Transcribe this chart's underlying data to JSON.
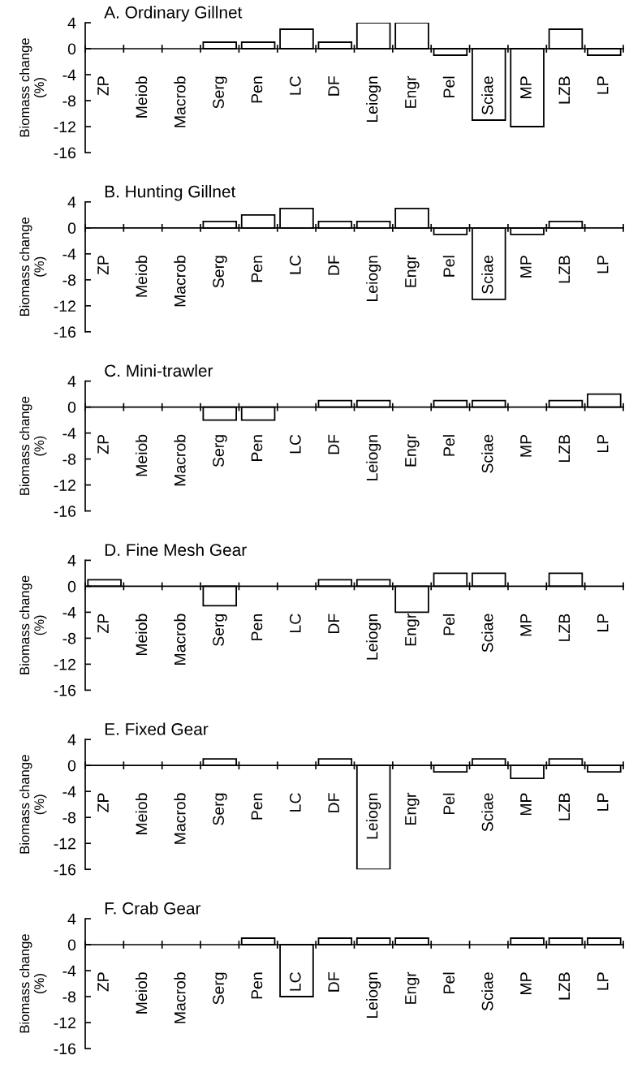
{
  "chart_data": [
    {
      "type": "bar",
      "title": "A. Ordinary Gillnet",
      "ylabel": "Biomass change\n(%)",
      "color": "#ffffff",
      "ylim": [
        -16,
        4
      ],
      "yticks": [
        4,
        0,
        -4,
        -8,
        -12,
        -16
      ],
      "categories": [
        "ZP",
        "Meiob",
        "Macrob",
        "Serg",
        "Pen",
        "LC",
        "DF",
        "Leiogn",
        "Engr",
        "Pel",
        "Sciae",
        "MP",
        "LZB",
        "LP"
      ],
      "values": [
        0,
        0,
        0,
        1,
        1,
        3,
        1,
        4,
        4,
        -1,
        -11,
        -12,
        3,
        -1
      ]
    },
    {
      "type": "bar",
      "title": "B. Hunting Gillnet",
      "ylabel": "Biomass change\n(%)",
      "color": "#ffffff",
      "ylim": [
        -16,
        4
      ],
      "yticks": [
        4,
        0,
        -4,
        -8,
        -12,
        -16
      ],
      "categories": [
        "ZP",
        "Meiob",
        "Macrob",
        "Serg",
        "Pen",
        "LC",
        "DF",
        "Leiogn",
        "Engr",
        "Pel",
        "Sciae",
        "MP",
        "LZB",
        "LP"
      ],
      "values": [
        0,
        0,
        0,
        1,
        2,
        3,
        1,
        1,
        3,
        -1,
        -11,
        -1,
        1,
        0
      ]
    },
    {
      "type": "bar",
      "title": "C. Mini-trawler",
      "ylabel": "Biomass change\n(%)",
      "color": "#ffffff",
      "ylim": [
        -16,
        4
      ],
      "yticks": [
        4,
        0,
        -4,
        -8,
        -12,
        -16
      ],
      "categories": [
        "ZP",
        "Meiob",
        "Macrob",
        "Serg",
        "Pen",
        "LC",
        "DF",
        "Leiogn",
        "Engr",
        "Pel",
        "Sciae",
        "MP",
        "LZB",
        "LP"
      ],
      "values": [
        0,
        0,
        0,
        -2,
        -2,
        0,
        1,
        1,
        0,
        1,
        1,
        0,
        1,
        2
      ]
    },
    {
      "type": "bar",
      "title": "D. Fine Mesh Gear",
      "ylabel": "Biomass change\n(%)",
      "color": "#ffffff",
      "ylim": [
        -16,
        4
      ],
      "yticks": [
        4,
        0,
        -4,
        -8,
        -12,
        -16
      ],
      "categories": [
        "ZP",
        "Meiob",
        "Macrob",
        "Serg",
        "Pen",
        "LC",
        "DF",
        "Leiogn",
        "Engr",
        "Pel",
        "Sciae",
        "MP",
        "LZB",
        "LP"
      ],
      "values": [
        1,
        0,
        0,
        -3,
        0,
        0,
        1,
        1,
        -4,
        2,
        2,
        0,
        2,
        0
      ]
    },
    {
      "type": "bar",
      "title": "E. Fixed Gear",
      "ylabel": "Biomass change\n(%)",
      "color": "#ffffff",
      "ylim": [
        -16,
        4
      ],
      "yticks": [
        4,
        0,
        -4,
        -8,
        -12,
        -16
      ],
      "categories": [
        "ZP",
        "Meiob",
        "Macrob",
        "Serg",
        "Pen",
        "LC",
        "DF",
        "Leiogn",
        "Engr",
        "Pel",
        "Sciae",
        "MP",
        "LZB",
        "LP"
      ],
      "values": [
        0,
        0,
        0,
        1,
        0,
        0,
        1,
        -16,
        0,
        -1,
        1,
        -2,
        1,
        -1
      ]
    },
    {
      "type": "bar",
      "title": "F. Crab Gear",
      "ylabel": "Biomass change\n(%)",
      "color": "#ffffff",
      "ylim": [
        -16,
        4
      ],
      "yticks": [
        4,
        0,
        -4,
        -8,
        -12,
        -16
      ],
      "categories": [
        "ZP",
        "Meiob",
        "Macrob",
        "Serg",
        "Pen",
        "LC",
        "DF",
        "Leiogn",
        "Engr",
        "Pel",
        "Sciae",
        "MP",
        "LZB",
        "LP"
      ],
      "values": [
        0,
        0,
        0,
        0,
        1,
        -8,
        1,
        1,
        1,
        0,
        0,
        1,
        1,
        1
      ]
    }
  ]
}
